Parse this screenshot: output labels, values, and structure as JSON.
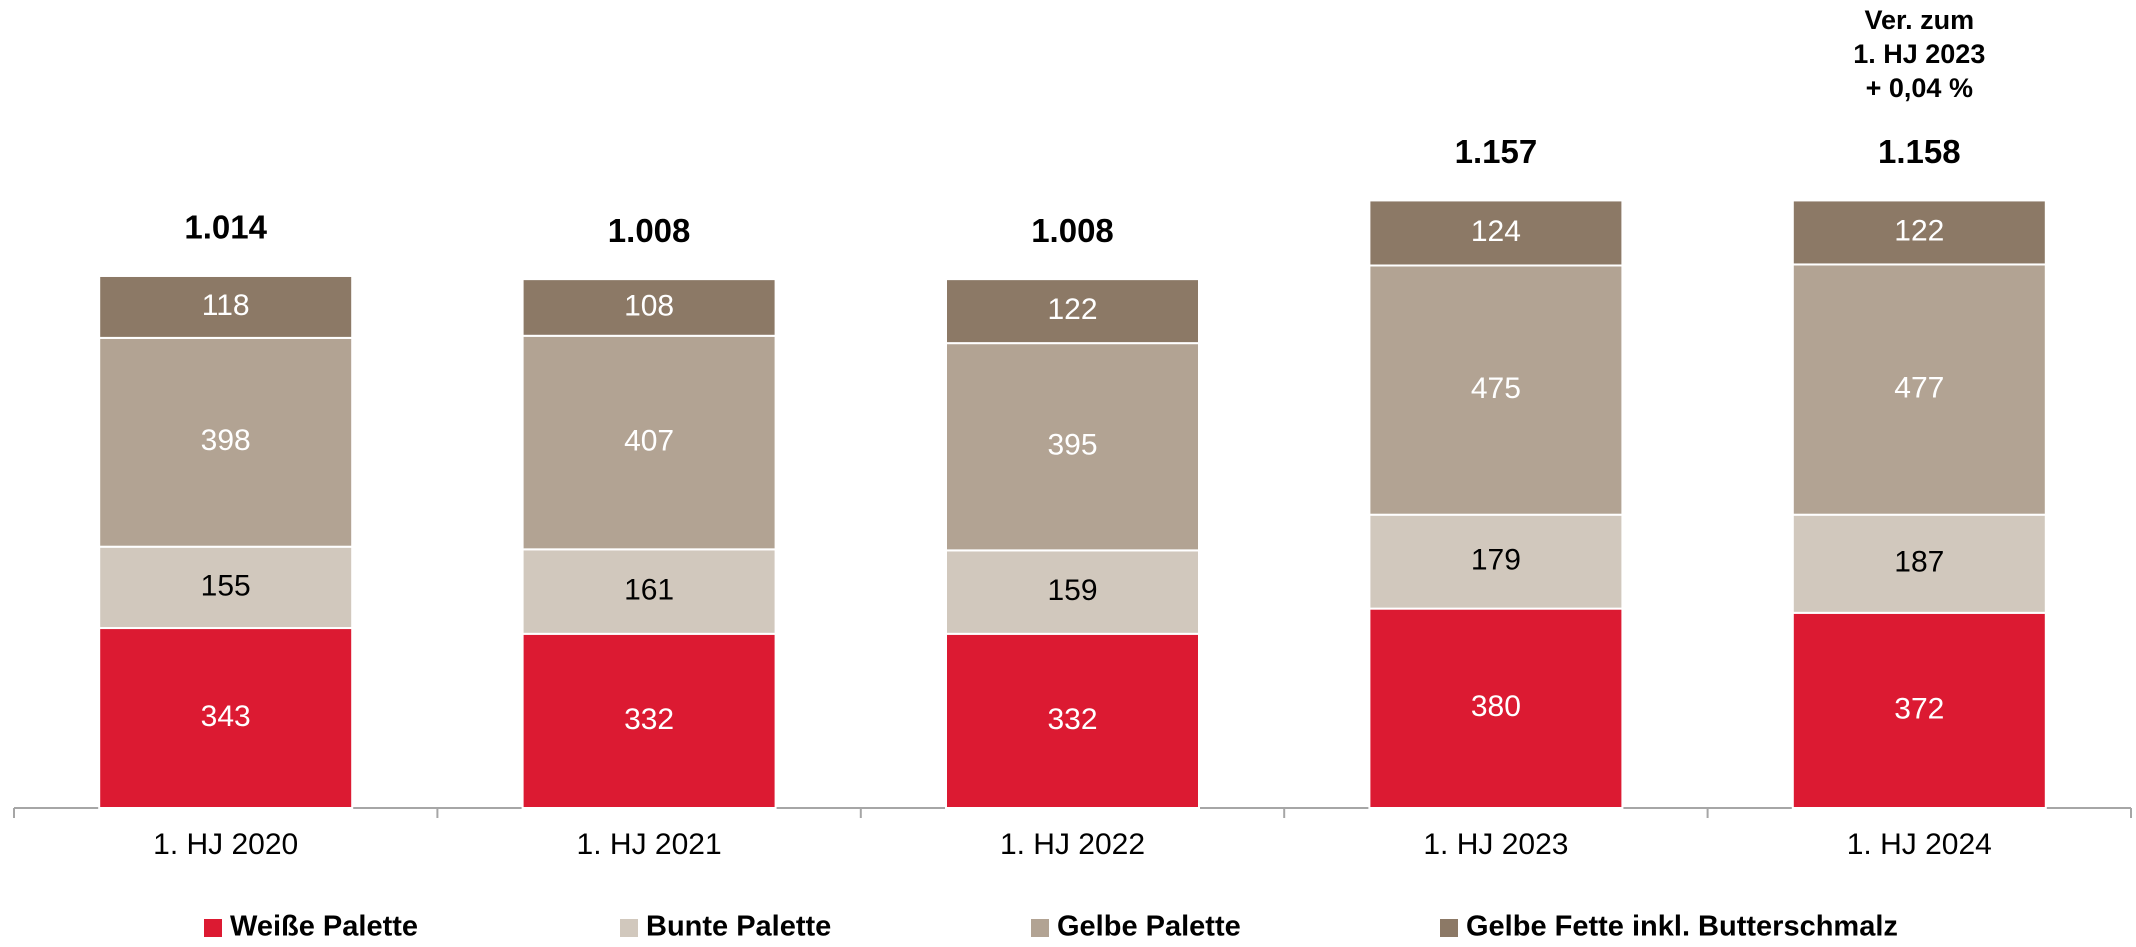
{
  "chart_data": {
    "type": "stacked-bar",
    "categories": [
      "1. HJ 2020",
      "1. HJ 2021",
      "1. HJ 2022",
      "1. HJ 2023",
      "1. HJ 2024"
    ],
    "series": [
      {
        "name": "Weiße Palette",
        "color": "#dc1a32",
        "label_color": "#ffffff",
        "values": [
          343,
          332,
          332,
          380,
          372
        ]
      },
      {
        "name": "Bunte Palette",
        "color": "#d1c8bd",
        "label_color": "#000000",
        "values": [
          155,
          161,
          159,
          179,
          187
        ]
      },
      {
        "name": "Gelbe Palette",
        "color": "#b2a393",
        "label_color": "#ffffff",
        "values": [
          398,
          407,
          395,
          475,
          477
        ]
      },
      {
        "name": "Gelbe Fette inkl. Butterschmalz",
        "color": "#8c7966",
        "label_color": "#ffffff",
        "values": [
          118,
          108,
          122,
          124,
          122
        ]
      }
    ],
    "totals": {
      "values": [
        1014,
        1008,
        1008,
        1157,
        1158
      ],
      "value_labels": [
        "1.014",
        "1.008",
        "1.008",
        "1.157",
        "1.158"
      ]
    },
    "annotation": {
      "category": 4,
      "lines": [
        "Ver. zum",
        "1. HJ 2023",
        "+ 0,04 %"
      ]
    },
    "ylim": [
      0,
      1540
    ]
  }
}
